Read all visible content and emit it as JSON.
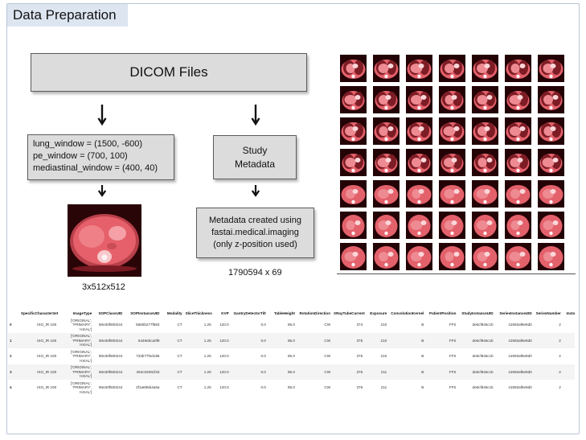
{
  "title": "Data Preparation",
  "dicom_box": "DICOM Files",
  "windows": [
    "lung_window = (1500, -600)",
    "pe_window = (700, 100)",
    "mediastinal_window = (400, 40)"
  ],
  "study_box": [
    "Study",
    "Metadata"
  ],
  "meta_box": [
    "Metadata created using",
    "fastai.medical.imaging",
    "(only z-position used)"
  ],
  "image_caption": "3x512x512",
  "meta_caption": "1790594 x 69",
  "table": {
    "columns": [
      "",
      "SpecificCharacterSet",
      "ImageType",
      "SOPClassUID",
      "SOPInstanceUID",
      "Modality",
      "SliceThickness",
      "KVP",
      "GantryDetectorTilt",
      "TableHeight",
      "RotationDirection",
      "XRayTubeCurrent",
      "Exposure",
      "ConvolutionKernel",
      "PatientPosition",
      "StudyInstanceUID",
      "SeriesInstanceUID",
      "SeriesNumber",
      "Instan"
    ],
    "rows": [
      {
        "index": "0",
        "charset": "ISO_IR 100",
        "image_type": [
          "['ORIGINAL',",
          "'PRIMARY',",
          "'AXIAL']"
        ],
        "sop_class": "80e30f500244",
        "sop_instance": "5660b277f883",
        "modality": "CT",
        "slice": "1.25",
        "kvp": "120.0",
        "tilt": "0.0",
        "table_height": "85.0",
        "rotation": "CW",
        "current": "374",
        "exposure": "210",
        "kernel": "B",
        "position": "FFS",
        "study_uid": "de6cf946ccb",
        "series_uid": "41993af9e9d0",
        "series_num": "2"
      },
      {
        "index": "1",
        "charset": "ISO_IR 100",
        "image_type": [
          "['ORIGINAL',",
          "'PRIMARY',",
          "'AXIAL']"
        ],
        "sop_class": "80e30f500244",
        "sop_instance": "6449ebca0f9",
        "modality": "CT",
        "slice": "1.25",
        "kvp": "120.0",
        "tilt": "0.0",
        "table_height": "85.0",
        "rotation": "CW",
        "current": "375",
        "exposure": "210",
        "kernel": "B",
        "position": "FFS",
        "study_uid": "de6cf946ccb",
        "series_uid": "41993af9e9d0",
        "series_num": "2"
      },
      {
        "index": "2",
        "charset": "ISO_IR 100",
        "image_type": [
          "['ORIGINAL',",
          "'PRIMARY',",
          "'AXIAL']"
        ],
        "sop_class": "80e30f500244",
        "sop_instance": "733b77fed195",
        "modality": "CT",
        "slice": "1.25",
        "kvp": "120.0",
        "tilt": "0.0",
        "table_height": "85.0",
        "rotation": "CW",
        "current": "375",
        "exposure": "210",
        "kernel": "B",
        "position": "FFS",
        "study_uid": "de6cf946ccb",
        "series_uid": "41993af9e9d0",
        "series_num": "2"
      },
      {
        "index": "3",
        "charset": "ISO_IR 100",
        "image_type": [
          "['ORIGINAL',",
          "'PRIMARY',",
          "'AXIAL']"
        ],
        "sop_class": "80e30f500244",
        "sop_instance": "294c0208cf33",
        "modality": "CT",
        "slice": "1.25",
        "kvp": "120.0",
        "tilt": "0.0",
        "table_height": "85.0",
        "rotation": "CW",
        "current": "376",
        "exposure": "211",
        "kernel": "B",
        "position": "FFS",
        "study_uid": "de6cf946ccb",
        "series_uid": "41993af9e9d0",
        "series_num": "2"
      },
      {
        "index": "4",
        "charset": "ISO_IR 100",
        "image_type": [
          "['ORIGINAL',",
          "'PRIMARY',",
          "'AXIAL']"
        ],
        "sop_class": "80e30f500244",
        "sop_instance": "2f1a695b4a6a",
        "modality": "CT",
        "slice": "1.25",
        "kvp": "120.0",
        "tilt": "0.0",
        "table_height": "85.0",
        "rotation": "CW",
        "current": "376",
        "exposure": "211",
        "kernel": "B",
        "position": "FFS",
        "study_uid": "de6cf946ccb",
        "series_uid": "41993af9e9d0",
        "series_num": "2"
      }
    ]
  },
  "icons": {
    "arrow": "down-arrow-icon",
    "ct_scan": "ct-slice-image",
    "thumbnail": "ct-thumbnail"
  },
  "colors": {
    "title_bg": "#dde5f1",
    "box_fill": "#dcdcdc",
    "ct_tint": "#e5606a",
    "frame_border": "#b9c3d6"
  }
}
